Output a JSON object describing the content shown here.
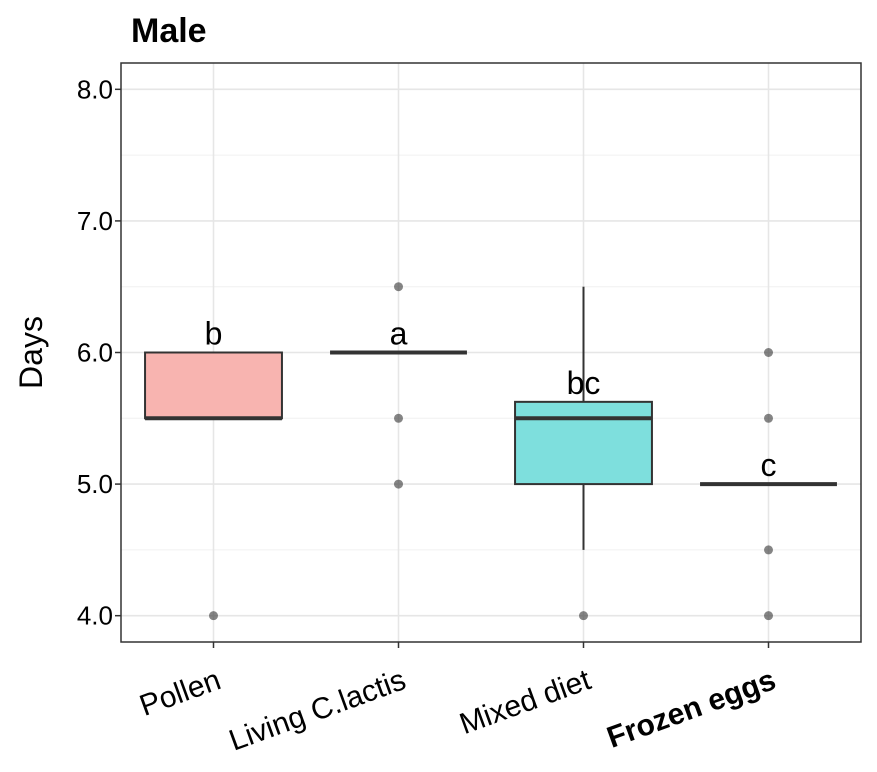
{
  "chart_data": {
    "type": "boxplot",
    "title": "Male",
    "xlabel": "",
    "ylabel": "Days",
    "ylim": [
      3.8,
      8.2
    ],
    "yticks": [
      {
        "value": 4.0,
        "label": "4.0"
      },
      {
        "value": 5.0,
        "label": "5.0"
      },
      {
        "value": 6.0,
        "label": "6.0"
      },
      {
        "value": 7.0,
        "label": "7.0"
      },
      {
        "value": 8.0,
        "label": "8.0"
      }
    ],
    "grid": true,
    "categories": [
      {
        "label": "Pollen",
        "bold": false,
        "box": {
          "q1": 5.5,
          "median": 5.5,
          "q3": 6.0,
          "whisker_low": 5.5,
          "whisker_high": 6.0
        },
        "outliers": [
          4.0
        ],
        "letter": "b",
        "color": "#F8B4B0"
      },
      {
        "label": "Living C.lactis",
        "bold": false,
        "box": {
          "q1": 6.0,
          "median": 6.0,
          "q3": 6.0,
          "whisker_low": 6.0,
          "whisker_high": 6.0
        },
        "outliers": [
          6.5,
          5.5,
          5.0
        ],
        "letter": "a",
        "color": "#F8B4B0"
      },
      {
        "label": "Mixed diet",
        "bold": false,
        "box": {
          "q1": 5.0,
          "median": 5.5,
          "q3": 5.625,
          "whisker_low": 4.5,
          "whisker_high": 6.5
        },
        "outliers": [
          4.0
        ],
        "letter": "bc",
        "color": "#7EDFDD"
      },
      {
        "label": "Frozen eggs",
        "bold": true,
        "box": {
          "q1": 5.0,
          "median": 5.0,
          "q3": 5.0,
          "whisker_low": 5.0,
          "whisker_high": 5.0
        },
        "outliers": [
          6.0,
          5.5,
          4.5,
          4.0
        ],
        "letter": "c",
        "color": "#7EDFDD"
      }
    ]
  }
}
